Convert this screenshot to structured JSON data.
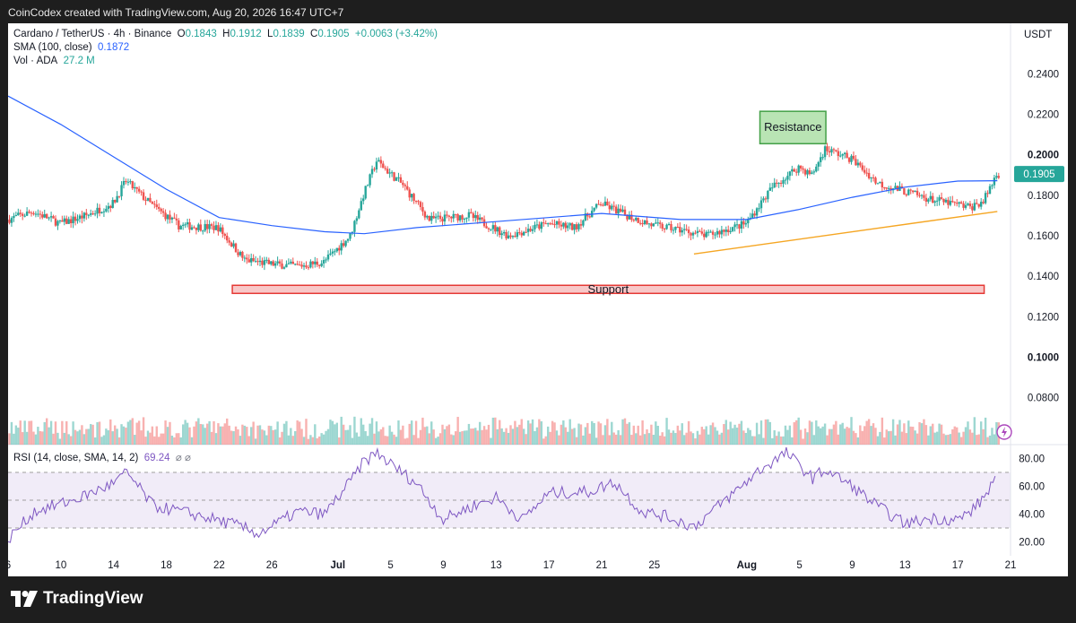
{
  "header": {
    "caption": "CoinCodex created with TradingView.com, Aug 20, 2026 16:47 UTC+7"
  },
  "legend": {
    "symbol": "Cardano / TetherUS · 4h · Binance",
    "o_label": "O",
    "o_value": "0.1843",
    "h_label": "H",
    "h_value": "0.1912",
    "l_label": "L",
    "l_value": "0.1839",
    "c_label": "C",
    "c_value": "0.1905",
    "change": "+0.0063 (+3.42%)",
    "sma_label": "SMA (100, close)",
    "sma_value": "0.1872",
    "vol_label": "Vol · ADA",
    "vol_value": "27.2 M",
    "rsi_label": "RSI (14, close, SMA, 14, 2)",
    "rsi_value": "69.24",
    "rsi_extra": "⌀ ⌀"
  },
  "price_axis": {
    "currency": "USDT",
    "current_price_label": "0.1905",
    "ticks": [
      "0.2400",
      "0.2200",
      "0.2000",
      "0.1800",
      "0.1600",
      "0.1400",
      "0.1200",
      "0.1000",
      "0.0800"
    ]
  },
  "rsi_axis": {
    "ticks": [
      "80.00",
      "60.00",
      "40.00",
      "20.00"
    ]
  },
  "time_axis": {
    "ticks": [
      "6",
      "10",
      "14",
      "18",
      "22",
      "26",
      "Jul",
      "5",
      "9",
      "13",
      "17",
      "21",
      "25",
      "Aug",
      "5",
      "9",
      "13",
      "17",
      "21"
    ]
  },
  "annotations": {
    "resistance": "Resistance",
    "support": "Support"
  },
  "footer": {
    "logo_text": "TradingView"
  },
  "colors": {
    "up": "#26a69a",
    "down": "#ef5350",
    "sma": "#2962ff",
    "rsi": "#7e57c2",
    "trendline": "#f5a623",
    "support_fill": "#f8c8c8",
    "support_border": "#e53935",
    "resistance_fill": "#b9e4b4",
    "resistance_border": "#43a047"
  },
  "chart_data": {
    "type": "candlestick",
    "title": "Cardano / TetherUS · 4h · Binance",
    "ylabel": "USDT",
    "ylim": [
      0.07,
      0.255
    ],
    "x_range": [
      "Jun 6",
      "Aug 21"
    ],
    "ohlc_last": {
      "open": 0.1843,
      "high": 0.1912,
      "low": 0.1839,
      "close": 0.1905
    },
    "close_path": [
      {
        "x": "Jun 6",
        "y": 0.168
      },
      {
        "x": "Jun 8",
        "y": 0.172
      },
      {
        "x": "Jun 10",
        "y": 0.166
      },
      {
        "x": "Jun 12",
        "y": 0.17
      },
      {
        "x": "Jun 14",
        "y": 0.176
      },
      {
        "x": "Jun 15",
        "y": 0.187
      },
      {
        "x": "Jun 17",
        "y": 0.175
      },
      {
        "x": "Jun 19",
        "y": 0.165
      },
      {
        "x": "Jun 22",
        "y": 0.164
      },
      {
        "x": "Jun 24",
        "y": 0.148
      },
      {
        "x": "Jun 26",
        "y": 0.146
      },
      {
        "x": "Jun 28",
        "y": 0.145
      },
      {
        "x": "Jun 30",
        "y": 0.147
      },
      {
        "x": "Jul 2",
        "y": 0.16
      },
      {
        "x": "Jul 3",
        "y": 0.18
      },
      {
        "x": "Jul 4",
        "y": 0.197
      },
      {
        "x": "Jul 6",
        "y": 0.185
      },
      {
        "x": "Jul 8",
        "y": 0.168
      },
      {
        "x": "Jul 11",
        "y": 0.17
      },
      {
        "x": "Jul 14",
        "y": 0.16
      },
      {
        "x": "Jul 17",
        "y": 0.166
      },
      {
        "x": "Jul 19",
        "y": 0.164
      },
      {
        "x": "Jul 21",
        "y": 0.176
      },
      {
        "x": "Jul 23",
        "y": 0.17
      },
      {
        "x": "Jul 25",
        "y": 0.165
      },
      {
        "x": "Jul 27",
        "y": 0.163
      },
      {
        "x": "Jul 29",
        "y": 0.16
      },
      {
        "x": "Aug 1",
        "y": 0.166
      },
      {
        "x": "Aug 3",
        "y": 0.184
      },
      {
        "x": "Aug 5",
        "y": 0.194
      },
      {
        "x": "Aug 6",
        "y": 0.19
      },
      {
        "x": "Aug 7",
        "y": 0.203
      },
      {
        "x": "Aug 9",
        "y": 0.198
      },
      {
        "x": "Aug 11",
        "y": 0.186
      },
      {
        "x": "Aug 13",
        "y": 0.182
      },
      {
        "x": "Aug 15",
        "y": 0.178
      },
      {
        "x": "Aug 18",
        "y": 0.174
      },
      {
        "x": "Aug 19",
        "y": 0.177
      },
      {
        "x": "Aug 20",
        "y": 0.1905
      }
    ],
    "sma_path": [
      {
        "x": "Jun 6",
        "y": 0.229
      },
      {
        "x": "Jun 10",
        "y": 0.215
      },
      {
        "x": "Jun 14",
        "y": 0.199
      },
      {
        "x": "Jun 18",
        "y": 0.183
      },
      {
        "x": "Jun 22",
        "y": 0.169
      },
      {
        "x": "Jun 26",
        "y": 0.165
      },
      {
        "x": "Jun 30",
        "y": 0.162
      },
      {
        "x": "Jul 3",
        "y": 0.161
      },
      {
        "x": "Jul 7",
        "y": 0.164
      },
      {
        "x": "Jul 13",
        "y": 0.167
      },
      {
        "x": "Jul 21",
        "y": 0.171
      },
      {
        "x": "Jul 27",
        "y": 0.168
      },
      {
        "x": "Aug 1",
        "y": 0.168
      },
      {
        "x": "Aug 5",
        "y": 0.173
      },
      {
        "x": "Aug 9",
        "y": 0.179
      },
      {
        "x": "Aug 13",
        "y": 0.184
      },
      {
        "x": "Aug 17",
        "y": 0.187
      },
      {
        "x": "Aug 20",
        "y": 0.1872
      }
    ],
    "rsi_path": [
      {
        "x": "Jun 6",
        "y": 22
      },
      {
        "x": "Jun 8",
        "y": 42
      },
      {
        "x": "Jun 11",
        "y": 50
      },
      {
        "x": "Jun 14",
        "y": 62
      },
      {
        "x": "Jun 15",
        "y": 70
      },
      {
        "x": "Jun 17",
        "y": 46
      },
      {
        "x": "Jun 20",
        "y": 40
      },
      {
        "x": "Jun 23",
        "y": 33
      },
      {
        "x": "Jun 25",
        "y": 26
      },
      {
        "x": "Jun 28",
        "y": 42
      },
      {
        "x": "Jun 30",
        "y": 40
      },
      {
        "x": "Jul 2",
        "y": 64
      },
      {
        "x": "Jul 3",
        "y": 78
      },
      {
        "x": "Jul 4",
        "y": 84
      },
      {
        "x": "Jul 5",
        "y": 76
      },
      {
        "x": "Jul 7",
        "y": 62
      },
      {
        "x": "Jul 9",
        "y": 36
      },
      {
        "x": "Jul 11",
        "y": 45
      },
      {
        "x": "Jul 13",
        "y": 52
      },
      {
        "x": "Jul 15",
        "y": 36
      },
      {
        "x": "Jul 17",
        "y": 55
      },
      {
        "x": "Jul 20",
        "y": 56
      },
      {
        "x": "Jul 22",
        "y": 63
      },
      {
        "x": "Jul 24",
        "y": 42
      },
      {
        "x": "Jul 26",
        "y": 38
      },
      {
        "x": "Jul 28",
        "y": 31
      },
      {
        "x": "Jul 31",
        "y": 55
      },
      {
        "x": "Aug 2",
        "y": 72
      },
      {
        "x": "Aug 4",
        "y": 84
      },
      {
        "x": "Aug 6",
        "y": 66
      },
      {
        "x": "Aug 7",
        "y": 72
      },
      {
        "x": "Aug 9",
        "y": 60
      },
      {
        "x": "Aug 11",
        "y": 45
      },
      {
        "x": "Aug 13",
        "y": 33
      },
      {
        "x": "Aug 15",
        "y": 37
      },
      {
        "x": "Aug 17",
        "y": 36
      },
      {
        "x": "Aug 18",
        "y": 42
      },
      {
        "x": "Aug 19",
        "y": 52
      },
      {
        "x": "Aug 20",
        "y": 69.24
      }
    ],
    "rsi_levels": [
      30,
      50,
      70
    ],
    "rsi_ylim": [
      10,
      90
    ],
    "trendline": {
      "from": {
        "x": "Jul 28",
        "y": 0.151
      },
      "to": {
        "x": "Aug 20",
        "y": 0.172
      }
    },
    "zones": [
      {
        "label": "Resistance",
        "y_from": 0.2055,
        "y_to": 0.2215,
        "x_from": "Aug 2",
        "x_to": "Aug 7"
      },
      {
        "label": "Support",
        "y_from": 0.1315,
        "y_to": 0.1355,
        "x_from": "Jun 23",
        "x_to": "Aug 19"
      }
    ]
  }
}
